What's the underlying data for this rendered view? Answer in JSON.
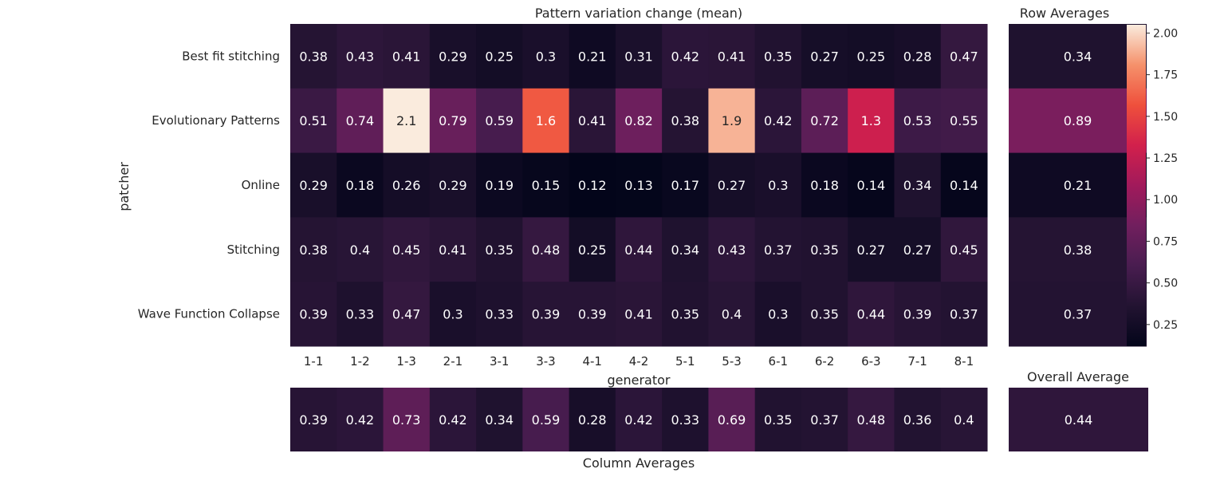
{
  "chart_data": {
    "type": "heatmap",
    "title": "Pattern variation change (mean)",
    "xlabel": "generator",
    "ylabel": "patcher",
    "x_categories": [
      "1-1",
      "1-2",
      "1-3",
      "2-1",
      "3-1",
      "3-3",
      "4-1",
      "4-2",
      "5-1",
      "5-3",
      "6-1",
      "6-2",
      "6-3",
      "7-1",
      "8-1"
    ],
    "y_categories": [
      "Best fit stitching",
      "Evolutionary Patterns",
      "Online",
      "Stitching",
      "Wave Function Collapse"
    ],
    "values": [
      [
        0.38,
        0.43,
        0.41,
        0.29,
        0.25,
        0.3,
        0.21,
        0.31,
        0.42,
        0.41,
        0.35,
        0.27,
        0.25,
        0.28,
        0.47
      ],
      [
        0.51,
        0.74,
        2.1,
        0.79,
        0.59,
        1.6,
        0.41,
        0.82,
        0.38,
        1.9,
        0.42,
        0.72,
        1.3,
        0.53,
        0.55
      ],
      [
        0.29,
        0.18,
        0.26,
        0.29,
        0.19,
        0.15,
        0.12,
        0.13,
        0.17,
        0.27,
        0.3,
        0.18,
        0.14,
        0.34,
        0.14
      ],
      [
        0.38,
        0.4,
        0.45,
        0.41,
        0.35,
        0.48,
        0.25,
        0.44,
        0.34,
        0.43,
        0.37,
        0.35,
        0.27,
        0.27,
        0.45
      ],
      [
        0.39,
        0.33,
        0.47,
        0.3,
        0.33,
        0.39,
        0.39,
        0.41,
        0.35,
        0.4,
        0.3,
        0.35,
        0.44,
        0.39,
        0.37
      ]
    ],
    "row_averages": {
      "title": "Row Averages",
      "values": [
        0.34,
        0.89,
        0.21,
        0.38,
        0.37
      ]
    },
    "column_averages": {
      "label": "Column Averages",
      "values": [
        0.39,
        0.42,
        0.73,
        0.42,
        0.34,
        0.59,
        0.28,
        0.42,
        0.33,
        0.69,
        0.35,
        0.37,
        0.48,
        0.36,
        0.4
      ]
    },
    "overall_average": {
      "title": "Overall Average",
      "value": 0.44
    },
    "colorbar": {
      "colormap": "rocket",
      "vmin": 0.12,
      "vmax": 2.05,
      "ticks": [
        0.25,
        0.5,
        0.75,
        1.0,
        1.25,
        1.5,
        1.75,
        2.0
      ],
      "tick_labels": [
        "0.25",
        "0.50",
        "0.75",
        "1.00",
        "1.25",
        "1.50",
        "1.75",
        "2.00"
      ]
    }
  }
}
